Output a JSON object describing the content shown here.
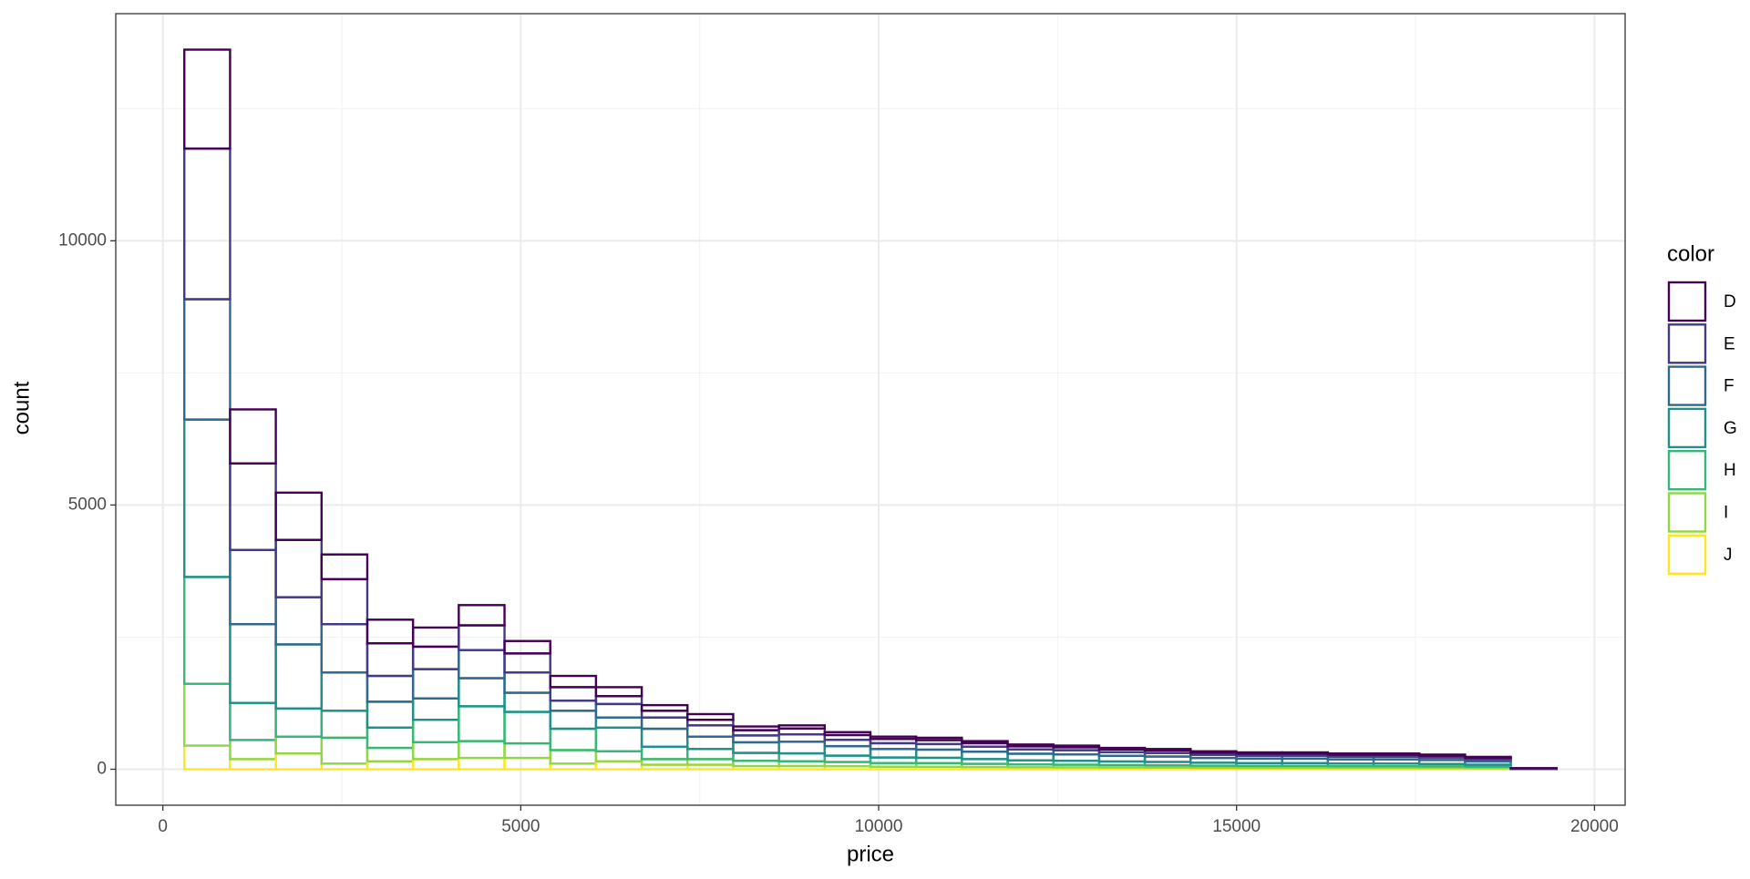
{
  "chart_data": {
    "type": "histogram",
    "x_label": "price",
    "y_label": "count",
    "legend_title": "color",
    "legend_position": "right",
    "bins": [
      300,
      939,
      1578,
      2217,
      2856,
      3495,
      4134,
      4773,
      5412,
      6051,
      6690,
      7329,
      7968,
      8607,
      9246,
      9885,
      10524,
      11163,
      11802,
      12441,
      13080,
      13719,
      14358,
      14997,
      15636,
      16275,
      16914,
      17553,
      18192,
      18831,
      19470
    ],
    "series": [
      {
        "name": "D",
        "color": "#440154",
        "values": [
          1872,
          1022,
          894,
          468,
          447,
          362,
          383,
          235,
          213,
          170,
          107,
          107,
          70,
          60,
          55,
          45,
          45,
          40,
          35,
          32,
          30,
          28,
          25,
          23,
          23,
          22,
          22,
          20,
          17,
          2
        ]
      },
      {
        "name": "E",
        "color": "#443A83",
        "values": [
          2851,
          1638,
          1085,
          851,
          617,
          425,
          468,
          361,
          255,
          149,
          127,
          106,
          100,
          110,
          90,
          80,
          75,
          65,
          58,
          55,
          50,
          48,
          42,
          40,
          40,
          37,
          37,
          35,
          29,
          3
        ]
      },
      {
        "name": "F",
        "color": "#31688E",
        "values": [
          2277,
          1404,
          893,
          915,
          489,
          554,
          532,
          383,
          192,
          255,
          213,
          213,
          130,
          140,
          120,
          110,
          105,
          95,
          82,
          80,
          70,
          67,
          60,
          56,
          56,
          52,
          52,
          48,
          41,
          4
        ]
      },
      {
        "name": "G",
        "color": "#21908C",
        "values": [
          2979,
          1490,
          1213,
          724,
          490,
          404,
          532,
          362,
          340,
          192,
          340,
          234,
          200,
          220,
          180,
          160,
          155,
          140,
          125,
          120,
          108,
          102,
          90,
          85,
          85,
          80,
          80,
          74,
          62,
          5
        ]
      },
      {
        "name": "H",
        "color": "#35B779",
        "values": [
          2021,
          702,
          532,
          510,
          383,
          425,
          659,
          596,
          404,
          447,
          235,
          192,
          150,
          150,
          120,
          105,
          100,
          90,
          78,
          75,
          68,
          64,
          57,
          53,
          53,
          50,
          50,
          46,
          39,
          3
        ]
      },
      {
        "name": "I",
        "color": "#8FD744",
        "values": [
          1170,
          362,
          319,
          490,
          255,
          320,
          319,
          276,
          256,
          191,
          106,
          106,
          100,
          90,
          80,
          70,
          70,
          60,
          52,
          50,
          45,
          43,
          38,
          36,
          36,
          33,
          33,
          31,
          26,
          2
        ]
      },
      {
        "name": "J",
        "color": "#FDE725",
        "values": [
          447,
          191,
          298,
          106,
          149,
          191,
          213,
          213,
          106,
          149,
          85,
          85,
          59,
          60,
          57,
          47,
          46,
          42,
          38,
          35,
          33,
          31,
          28,
          26,
          26,
          24,
          24,
          23,
          20,
          1
        ]
      }
    ],
    "xlim": [
      -658,
      20428
    ],
    "xticks": [
      0,
      5000,
      10000,
      15000,
      20000
    ],
    "x_minor_grid": [
      2500,
      7500,
      12500,
      17500
    ],
    "ylim": [
      -681,
      14298
    ],
    "yticks": [
      0,
      5000,
      10000
    ],
    "y_minor_grid": [
      2500,
      7500,
      12500
    ],
    "grid": true
  }
}
